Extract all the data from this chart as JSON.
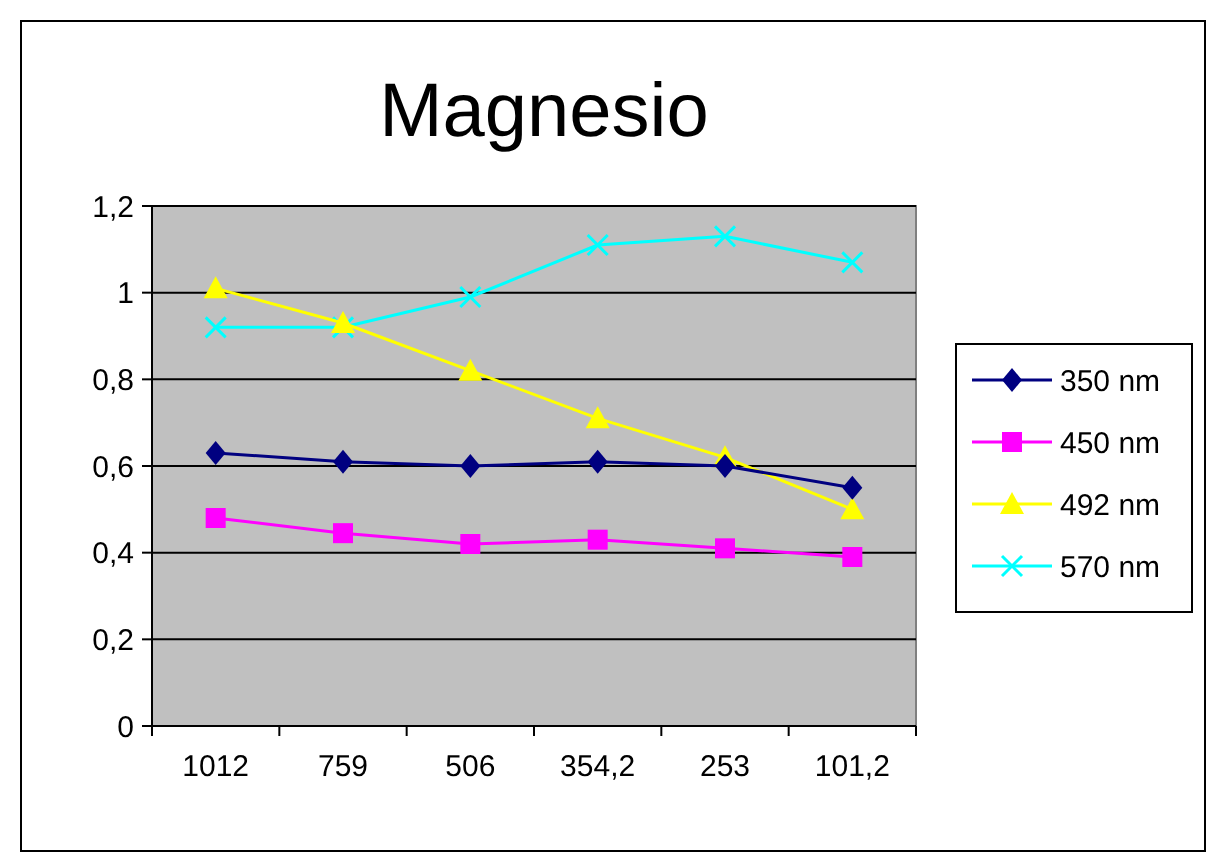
{
  "chart_data": {
    "type": "line",
    "title": "Magnesio",
    "categories": [
      "1012",
      "759",
      "506",
      "354,2",
      "253",
      "101,2"
    ],
    "series": [
      {
        "name": "350 nm",
        "color": "#000080",
        "marker": "diamond",
        "values": [
          0.63,
          0.61,
          0.6,
          0.61,
          0.6,
          0.55
        ]
      },
      {
        "name": "450 nm",
        "color": "#ff00ff",
        "marker": "square",
        "values": [
          0.48,
          0.445,
          0.42,
          0.43,
          0.41,
          0.39
        ]
      },
      {
        "name": "492 nm",
        "color": "#ffff00",
        "marker": "triangle",
        "values": [
          1.01,
          0.93,
          0.82,
          0.71,
          0.62,
          0.5
        ]
      },
      {
        "name": "570 nm",
        "color": "#00ffff",
        "marker": "cross",
        "values": [
          0.92,
          0.92,
          0.99,
          1.11,
          1.13,
          1.07
        ]
      }
    ],
    "ylim": [
      0,
      1.2
    ],
    "yticks": [
      0,
      {
        "value": 0.2,
        "label": "0,2"
      },
      {
        "value": 0.4,
        "label": "0,4"
      },
      {
        "value": 0.6,
        "label": "0,6"
      },
      {
        "value": 0.8,
        "label": "0,8"
      },
      1,
      {
        "value": 1.2,
        "label": "1,2"
      }
    ],
    "grid": "y",
    "legend": "right",
    "line_style": "solid"
  }
}
